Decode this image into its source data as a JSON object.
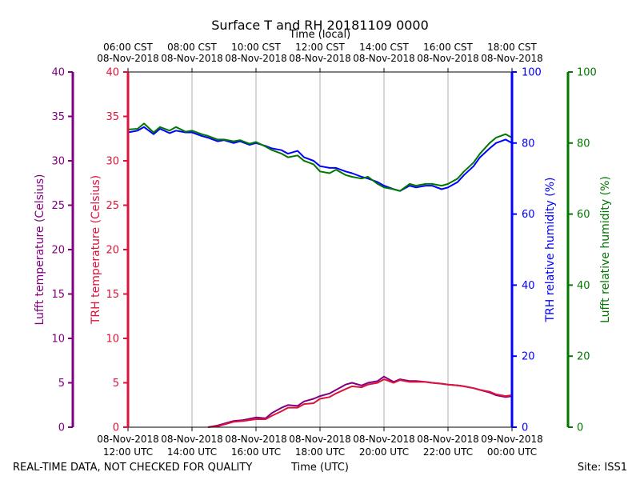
{
  "chart_data": {
    "type": "line",
    "title": "Surface T and RH 20181109 0000",
    "top_axis_label": "Time (local)",
    "bottom_axis_label": "Time (UTC)",
    "footer_left": "REAL-TIME DATA, NOT CHECKED FOR QUALITY",
    "footer_right": "Site: ISS1",
    "x_range_hours_utc": [
      12,
      24
    ],
    "bottom_ticks": [
      {
        "t": 12,
        "line1": "08-Nov-2018",
        "line2": "12:00 UTC"
      },
      {
        "t": 14,
        "line1": "08-Nov-2018",
        "line2": "14:00 UTC"
      },
      {
        "t": 16,
        "line1": "08-Nov-2018",
        "line2": "16:00 UTC"
      },
      {
        "t": 18,
        "line1": "08-Nov-2018",
        "line2": "18:00 UTC"
      },
      {
        "t": 20,
        "line1": "08-Nov-2018",
        "line2": "20:00 UTC"
      },
      {
        "t": 22,
        "line1": "08-Nov-2018",
        "line2": "22:00 UTC"
      },
      {
        "t": 24,
        "line1": "09-Nov-2018",
        "line2": "00:00 UTC"
      }
    ],
    "top_ticks": [
      {
        "t": 12,
        "line1": "06:00 CST",
        "line2": "08-Nov-2018"
      },
      {
        "t": 14,
        "line1": "08:00 CST",
        "line2": "08-Nov-2018"
      },
      {
        "t": 16,
        "line1": "10:00 CST",
        "line2": "08-Nov-2018"
      },
      {
        "t": 18,
        "line1": "12:00 CST",
        "line2": "08-Nov-2018"
      },
      {
        "t": 20,
        "line1": "14:00 CST",
        "line2": "08-Nov-2018"
      },
      {
        "t": 22,
        "line1": "16:00 CST",
        "line2": "08-Nov-2018"
      },
      {
        "t": 24,
        "line1": "18:00 CST",
        "line2": "08-Nov-2018"
      }
    ],
    "axes": {
      "lufft_temp": {
        "label": "Lufft temperature (Celsius)",
        "color": "#800080",
        "range": [
          0,
          40
        ],
        "ticks": [
          0,
          5,
          10,
          15,
          20,
          25,
          30,
          35,
          40
        ]
      },
      "trh_temp": {
        "label": "TRH temperature (Celsius)",
        "color": "#dc143c",
        "range": [
          0,
          40
        ],
        "ticks": [
          0,
          5,
          10,
          15,
          20,
          25,
          30,
          35,
          40
        ]
      },
      "trh_rh": {
        "label": "TRH relative humidity (%)",
        "color": "#0000ff",
        "range": [
          0,
          100
        ],
        "ticks": [
          0,
          20,
          40,
          60,
          80,
          100
        ]
      },
      "lufft_rh": {
        "label": "Lufft relative humidity (%)",
        "color": "#007800",
        "range": [
          0,
          100
        ],
        "ticks": [
          0,
          20,
          40,
          60,
          80,
          100
        ]
      }
    },
    "series": [
      {
        "name": "Lufft temperature",
        "axis": "lufft_temp",
        "color": "#800080",
        "x": [
          14.5,
          14.8,
          15.0,
          15.3,
          15.6,
          16.0,
          16.3,
          16.5,
          16.8,
          17.0,
          17.3,
          17.5,
          17.8,
          18.0,
          18.3,
          18.5,
          18.8,
          19.0,
          19.3,
          19.5,
          19.8,
          20.0,
          20.3,
          20.5,
          20.8,
          21.0,
          21.3,
          21.5,
          21.8,
          22.0,
          22.3,
          22.5,
          22.8,
          23.0,
          23.3,
          23.5,
          23.8,
          24.0
        ],
        "y": [
          0.0,
          0.2,
          0.4,
          0.7,
          0.8,
          1.1,
          1.0,
          1.6,
          2.2,
          2.5,
          2.4,
          2.9,
          3.2,
          3.5,
          3.8,
          4.2,
          4.8,
          5.0,
          4.7,
          5.0,
          5.2,
          5.7,
          5.1,
          5.4,
          5.2,
          5.2,
          5.1,
          5.0,
          4.9,
          4.8,
          4.7,
          4.6,
          4.4,
          4.2,
          3.9,
          3.6,
          3.4,
          3.5
        ]
      },
      {
        "name": "TRH temperature",
        "axis": "trh_temp",
        "color": "#dc143c",
        "x": [
          14.5,
          14.8,
          15.0,
          15.3,
          15.6,
          16.0,
          16.3,
          16.5,
          16.8,
          17.0,
          17.3,
          17.5,
          17.8,
          18.0,
          18.3,
          18.5,
          18.8,
          19.0,
          19.3,
          19.5,
          19.8,
          20.0,
          20.3,
          20.5,
          20.8,
          21.0,
          21.3,
          21.5,
          21.8,
          22.0,
          22.3,
          22.5,
          22.8,
          23.0,
          23.3,
          23.5,
          23.8,
          24.0
        ],
        "y": [
          0.0,
          0.1,
          0.3,
          0.6,
          0.7,
          0.9,
          0.9,
          1.3,
          1.8,
          2.2,
          2.2,
          2.6,
          2.7,
          3.2,
          3.4,
          3.8,
          4.3,
          4.6,
          4.5,
          4.8,
          5.0,
          5.4,
          5.0,
          5.3,
          5.1,
          5.1,
          5.1,
          5.0,
          4.9,
          4.8,
          4.7,
          4.6,
          4.4,
          4.2,
          4.0,
          3.7,
          3.5,
          3.6
        ]
      },
      {
        "name": "TRH relative humidity",
        "axis": "trh_rh",
        "color": "#0000ff",
        "x": [
          12.0,
          12.3,
          12.5,
          12.8,
          13.0,
          13.3,
          13.5,
          13.8,
          14.0,
          14.3,
          14.5,
          14.8,
          15.0,
          15.3,
          15.5,
          15.8,
          16.0,
          16.3,
          16.5,
          16.8,
          17.0,
          17.3,
          17.5,
          17.8,
          18.0,
          18.3,
          18.5,
          18.8,
          19.0,
          19.3,
          19.5,
          19.8,
          20.0,
          20.3,
          20.5,
          20.8,
          21.0,
          21.3,
          21.5,
          21.8,
          22.0,
          22.3,
          22.5,
          22.8,
          23.0,
          23.3,
          23.5,
          23.8,
          24.0
        ],
        "y": [
          83.0,
          83.5,
          84.5,
          82.5,
          84.0,
          82.8,
          83.5,
          83.0,
          83.0,
          82.0,
          81.5,
          80.5,
          80.8,
          80.0,
          80.5,
          79.5,
          80.0,
          79.2,
          78.5,
          78.0,
          77.0,
          77.8,
          76.0,
          75.0,
          73.5,
          73.0,
          73.0,
          72.0,
          71.5,
          70.5,
          70.0,
          69.0,
          68.0,
          67.0,
          66.5,
          68.0,
          67.5,
          68.0,
          68.0,
          67.0,
          67.5,
          69.0,
          71.0,
          73.5,
          76.0,
          78.5,
          80.0,
          81.0,
          80.0
        ]
      },
      {
        "name": "Lufft relative humidity",
        "axis": "lufft_rh",
        "color": "#007800",
        "x": [
          12.0,
          12.3,
          12.5,
          12.8,
          13.0,
          13.3,
          13.5,
          13.8,
          14.0,
          14.3,
          14.5,
          14.8,
          15.0,
          15.3,
          15.5,
          15.8,
          16.0,
          16.3,
          16.5,
          16.8,
          17.0,
          17.3,
          17.5,
          17.8,
          18.0,
          18.3,
          18.5,
          18.8,
          19.0,
          19.3,
          19.5,
          19.8,
          20.0,
          20.3,
          20.5,
          20.8,
          21.0,
          21.3,
          21.5,
          21.8,
          22.0,
          22.3,
          22.5,
          22.8,
          23.0,
          23.3,
          23.5,
          23.8,
          24.0
        ],
        "y": [
          83.8,
          84.0,
          85.5,
          83.0,
          84.5,
          83.5,
          84.5,
          83.2,
          83.5,
          82.5,
          82.0,
          81.0,
          81.0,
          80.5,
          80.8,
          79.8,
          80.3,
          79.0,
          78.0,
          77.0,
          76.0,
          76.5,
          75.0,
          74.0,
          72.0,
          71.5,
          72.5,
          71.0,
          70.5,
          70.0,
          70.5,
          68.5,
          67.5,
          67.0,
          66.5,
          68.5,
          68.0,
          68.5,
          68.5,
          68.0,
          68.5,
          70.0,
          72.0,
          74.5,
          77.0,
          80.0,
          81.5,
          82.5,
          81.5
        ]
      }
    ]
  }
}
